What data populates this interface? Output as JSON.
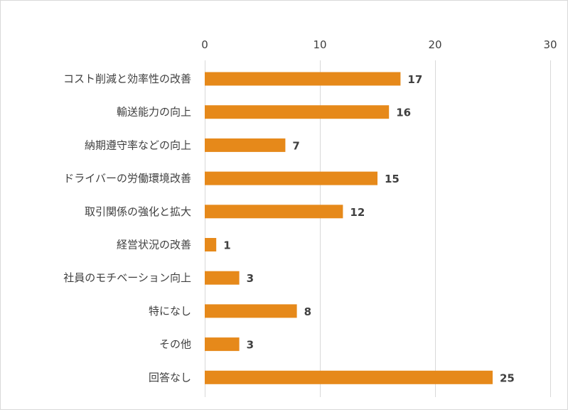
{
  "chart_data": {
    "type": "bar",
    "orientation": "horizontal",
    "categories": [
      "コスト削減と効率性の改善",
      "輸送能力の向上",
      "納期遵守率などの向上",
      "ドライバーの労働環境改善",
      "取引関係の強化と拡大",
      "経営状況の改善",
      "社員のモチベーション向上",
      "特になし",
      "その他",
      "回答なし"
    ],
    "values": [
      17,
      16,
      7,
      15,
      12,
      1,
      3,
      8,
      3,
      25
    ],
    "xlim": [
      0,
      30
    ],
    "ticks": [
      0,
      10,
      20,
      30
    ],
    "axis_position": "top",
    "grid": true,
    "data_labels": true,
    "title": "",
    "xlabel": "",
    "ylabel": "",
    "colors": {
      "bar": "#E6891A",
      "grid": "#d9d9d9",
      "text": "#404040"
    }
  }
}
